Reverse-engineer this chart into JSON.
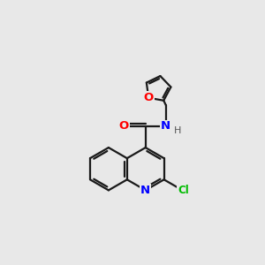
{
  "background_color": "#e8e8e8",
  "bond_color": "#1a1a1a",
  "atom_colors": {
    "N": "#0000ff",
    "O": "#ff0000",
    "Cl": "#00bb00",
    "H": "#555555"
  },
  "figsize": [
    3.0,
    3.0
  ],
  "dpi": 100,
  "lw": 1.6
}
